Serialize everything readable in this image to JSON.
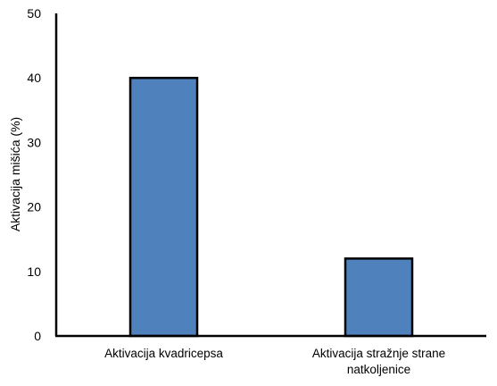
{
  "chart_data": {
    "type": "bar",
    "categories": [
      [
        "Aktivacija kvadricepsa"
      ],
      [
        "Aktivacija stražnje strane",
        "natkoljenice"
      ]
    ],
    "values": [
      40,
      12
    ],
    "title": "",
    "xlabel": "",
    "ylabel": "Aktivacija mišića (%)",
    "ylim": [
      0,
      50
    ],
    "yticks": [
      0,
      10,
      20,
      30,
      40,
      50
    ],
    "grid": false,
    "legend": "none",
    "bar_color": "#4f81bd",
    "bar_outline": "#000000"
  }
}
